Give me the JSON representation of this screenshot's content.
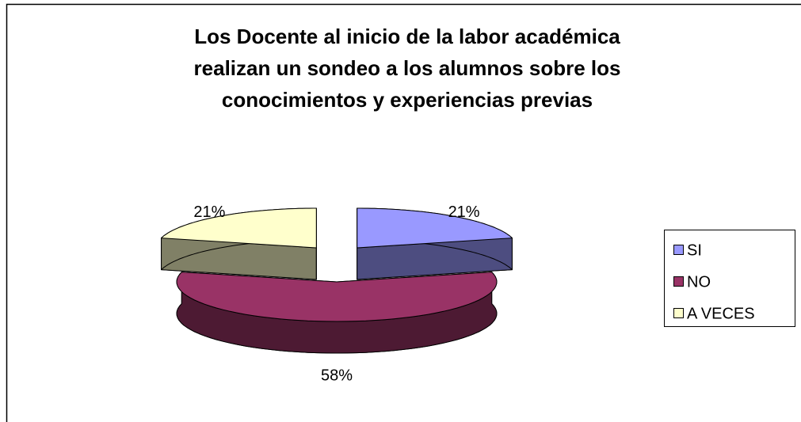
{
  "chart_data": {
    "type": "pie",
    "title": [
      "Los Docente al inicio de la labor académica",
      "realizan un sondeo  a los alumnos  sobre  los",
      "conocimientos y experiencias  previas"
    ],
    "categories": [
      "SI",
      "NO",
      "A VECES"
    ],
    "values": [
      21,
      58,
      21
    ],
    "value_labels": [
      "21%",
      "58%",
      "21%"
    ],
    "colors": [
      "#9999FF",
      "#993366",
      "#FFFFCC"
    ],
    "legend": "right",
    "three_d": true,
    "exploded": true
  }
}
